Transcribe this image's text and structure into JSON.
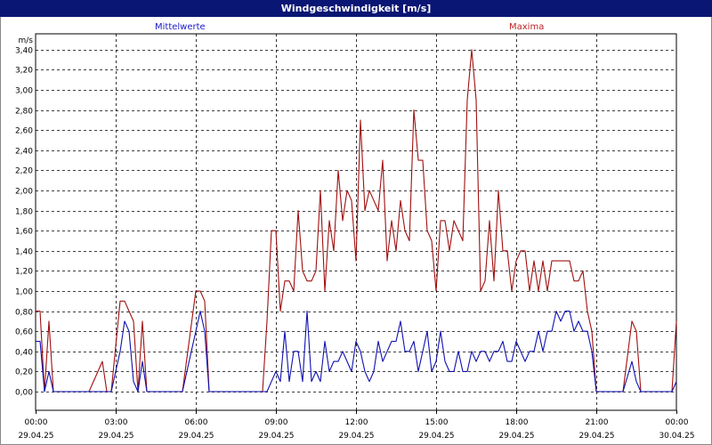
{
  "window": {
    "title": "Windgeschwindigkeit [m/s]"
  },
  "colors": {
    "mean": "#1010b0",
    "max": "#a01010",
    "grid": "#000000",
    "titlebar": "#0a1673"
  },
  "chart_data": {
    "type": "line",
    "title": "Windgeschwindigkeit [m/s]",
    "ylabel": "m/s",
    "xlabel": "",
    "ylim": [
      -0.1,
      3.55
    ],
    "y_ticks": [
      "0,00",
      "0,20",
      "0,40",
      "0,60",
      "0,80",
      "1,00",
      "1,20",
      "1,40",
      "1,60",
      "1,80",
      "2,00",
      "2,20",
      "2,40",
      "2,60",
      "2,80",
      "3,00",
      "3,20",
      "3,40"
    ],
    "x_ticks": [
      {
        "time": "00:00",
        "date": "29.04.25"
      },
      {
        "time": "03:00",
        "date": "29.04.25"
      },
      {
        "time": "06:00",
        "date": "29.04.25"
      },
      {
        "time": "09:00",
        "date": "29.04.25"
      },
      {
        "time": "12:00",
        "date": "29.04.25"
      },
      {
        "time": "15:00",
        "date": "29.04.25"
      },
      {
        "time": "18:00",
        "date": "29.04.25"
      },
      {
        "time": "21:00",
        "date": "29.04.25"
      },
      {
        "time": "00:00",
        "date": "30.04.25"
      }
    ],
    "grid": true,
    "series": [
      {
        "name": "Mittelwerte",
        "color": "#1010b0",
        "legend_position": "top-left",
        "points": [
          [
            "00:00",
            0.5
          ],
          [
            "00:10",
            0.5
          ],
          [
            "00:20",
            0.0
          ],
          [
            "00:30",
            0.2
          ],
          [
            "00:40",
            0.0
          ],
          [
            "00:50",
            0.0
          ],
          [
            "01:00",
            0.0
          ],
          [
            "01:30",
            0.0
          ],
          [
            "02:00",
            0.0
          ],
          [
            "02:30",
            0.0
          ],
          [
            "02:50",
            0.0
          ],
          [
            "03:10",
            0.4
          ],
          [
            "03:20",
            0.7
          ],
          [
            "03:30",
            0.6
          ],
          [
            "03:40",
            0.1
          ],
          [
            "03:50",
            0.0
          ],
          [
            "04:00",
            0.3
          ],
          [
            "04:10",
            0.0
          ],
          [
            "04:30",
            0.0
          ],
          [
            "05:00",
            0.0
          ],
          [
            "05:30",
            0.0
          ],
          [
            "06:00",
            0.6
          ],
          [
            "06:10",
            0.8
          ],
          [
            "06:20",
            0.6
          ],
          [
            "06:30",
            0.0
          ],
          [
            "07:00",
            0.0
          ],
          [
            "07:30",
            0.0
          ],
          [
            "08:00",
            0.0
          ],
          [
            "08:30",
            0.0
          ],
          [
            "08:40",
            0.0
          ],
          [
            "08:50",
            0.1
          ],
          [
            "09:00",
            0.2
          ],
          [
            "09:10",
            0.1
          ],
          [
            "09:20",
            0.6
          ],
          [
            "09:30",
            0.1
          ],
          [
            "09:40",
            0.4
          ],
          [
            "09:50",
            0.4
          ],
          [
            "10:00",
            0.1
          ],
          [
            "10:10",
            0.8
          ],
          [
            "10:20",
            0.1
          ],
          [
            "10:30",
            0.2
          ],
          [
            "10:40",
            0.1
          ],
          [
            "10:50",
            0.5
          ],
          [
            "11:00",
            0.2
          ],
          [
            "11:10",
            0.3
          ],
          [
            "11:20",
            0.3
          ],
          [
            "11:30",
            0.4
          ],
          [
            "11:40",
            0.3
          ],
          [
            "11:50",
            0.2
          ],
          [
            "12:00",
            0.5
          ],
          [
            "12:10",
            0.4
          ],
          [
            "12:20",
            0.2
          ],
          [
            "12:30",
            0.1
          ],
          [
            "12:40",
            0.2
          ],
          [
            "12:50",
            0.5
          ],
          [
            "13:00",
            0.3
          ],
          [
            "13:10",
            0.4
          ],
          [
            "13:20",
            0.5
          ],
          [
            "13:30",
            0.5
          ],
          [
            "13:40",
            0.7
          ],
          [
            "13:50",
            0.4
          ],
          [
            "14:00",
            0.4
          ],
          [
            "14:10",
            0.5
          ],
          [
            "14:20",
            0.2
          ],
          [
            "14:30",
            0.4
          ],
          [
            "14:40",
            0.6
          ],
          [
            "14:50",
            0.2
          ],
          [
            "15:00",
            0.3
          ],
          [
            "15:10",
            0.6
          ],
          [
            "15:20",
            0.3
          ],
          [
            "15:30",
            0.2
          ],
          [
            "15:40",
            0.2
          ],
          [
            "15:50",
            0.4
          ],
          [
            "16:00",
            0.2
          ],
          [
            "16:10",
            0.2
          ],
          [
            "16:20",
            0.4
          ],
          [
            "16:30",
            0.3
          ],
          [
            "16:40",
            0.4
          ],
          [
            "16:50",
            0.4
          ],
          [
            "17:00",
            0.3
          ],
          [
            "17:10",
            0.4
          ],
          [
            "17:20",
            0.4
          ],
          [
            "17:30",
            0.5
          ],
          [
            "17:40",
            0.3
          ],
          [
            "17:50",
            0.3
          ],
          [
            "18:00",
            0.5
          ],
          [
            "18:10",
            0.4
          ],
          [
            "18:20",
            0.3
          ],
          [
            "18:30",
            0.4
          ],
          [
            "18:40",
            0.4
          ],
          [
            "18:50",
            0.6
          ],
          [
            "19:00",
            0.4
          ],
          [
            "19:10",
            0.6
          ],
          [
            "19:20",
            0.6
          ],
          [
            "19:30",
            0.8
          ],
          [
            "19:40",
            0.7
          ],
          [
            "19:50",
            0.8
          ],
          [
            "20:00",
            0.8
          ],
          [
            "20:10",
            0.6
          ],
          [
            "20:20",
            0.7
          ],
          [
            "20:30",
            0.6
          ],
          [
            "20:40",
            0.6
          ],
          [
            "20:50",
            0.4
          ],
          [
            "21:00",
            0.0
          ],
          [
            "21:10",
            0.0
          ],
          [
            "21:30",
            0.0
          ],
          [
            "22:00",
            0.0
          ],
          [
            "22:20",
            0.3
          ],
          [
            "22:30",
            0.1
          ],
          [
            "22:40",
            0.0
          ],
          [
            "23:00",
            0.0
          ],
          [
            "23:30",
            0.0
          ],
          [
            "23:50",
            0.0
          ],
          [
            "24:00",
            0.1
          ]
        ]
      },
      {
        "name": "Maxima",
        "color": "#a01010",
        "legend_position": "top-right",
        "points": [
          [
            "00:00",
            0.8
          ],
          [
            "00:10",
            0.8
          ],
          [
            "00:20",
            0.0
          ],
          [
            "00:30",
            0.7
          ],
          [
            "00:40",
            0.0
          ],
          [
            "00:50",
            0.0
          ],
          [
            "01:00",
            0.0
          ],
          [
            "01:30",
            0.0
          ],
          [
            "02:00",
            0.0
          ],
          [
            "02:30",
            0.3
          ],
          [
            "02:40",
            0.0
          ],
          [
            "02:50",
            0.0
          ],
          [
            "03:10",
            0.9
          ],
          [
            "03:20",
            0.9
          ],
          [
            "03:30",
            0.8
          ],
          [
            "03:40",
            0.7
          ],
          [
            "03:50",
            0.0
          ],
          [
            "04:00",
            0.7
          ],
          [
            "04:10",
            0.0
          ],
          [
            "04:30",
            0.0
          ],
          [
            "05:00",
            0.0
          ],
          [
            "05:30",
            0.0
          ],
          [
            "06:00",
            1.0
          ],
          [
            "06:10",
            1.0
          ],
          [
            "06:20",
            0.9
          ],
          [
            "06:30",
            0.0
          ],
          [
            "07:00",
            0.0
          ],
          [
            "07:30",
            0.0
          ],
          [
            "08:00",
            0.0
          ],
          [
            "08:30",
            0.0
          ],
          [
            "08:40",
            0.7
          ],
          [
            "08:50",
            1.6
          ],
          [
            "09:00",
            1.6
          ],
          [
            "09:10",
            0.8
          ],
          [
            "09:20",
            1.1
          ],
          [
            "09:30",
            1.1
          ],
          [
            "09:40",
            1.0
          ],
          [
            "09:50",
            1.8
          ],
          [
            "10:00",
            1.2
          ],
          [
            "10:10",
            1.1
          ],
          [
            "10:20",
            1.1
          ],
          [
            "10:30",
            1.2
          ],
          [
            "10:40",
            2.0
          ],
          [
            "10:50",
            1.0
          ],
          [
            "11:00",
            1.7
          ],
          [
            "11:10",
            1.4
          ],
          [
            "11:20",
            2.2
          ],
          [
            "11:30",
            1.7
          ],
          [
            "11:40",
            2.0
          ],
          [
            "11:50",
            1.9
          ],
          [
            "12:00",
            1.3
          ],
          [
            "12:10",
            2.7
          ],
          [
            "12:20",
            1.8
          ],
          [
            "12:30",
            2.0
          ],
          [
            "12:40",
            1.9
          ],
          [
            "12:50",
            1.8
          ],
          [
            "13:00",
            2.3
          ],
          [
            "13:10",
            1.3
          ],
          [
            "13:20",
            1.7
          ],
          [
            "13:30",
            1.4
          ],
          [
            "13:40",
            1.9
          ],
          [
            "13:50",
            1.6
          ],
          [
            "14:00",
            1.5
          ],
          [
            "14:10",
            2.8
          ],
          [
            "14:20",
            2.3
          ],
          [
            "14:30",
            2.3
          ],
          [
            "14:40",
            1.6
          ],
          [
            "14:50",
            1.5
          ],
          [
            "15:00",
            1.0
          ],
          [
            "15:10",
            1.7
          ],
          [
            "15:20",
            1.7
          ],
          [
            "15:30",
            1.4
          ],
          [
            "15:40",
            1.7
          ],
          [
            "15:50",
            1.6
          ],
          [
            "16:00",
            1.5
          ],
          [
            "16:10",
            2.9
          ],
          [
            "16:20",
            3.4
          ],
          [
            "16:30",
            2.9
          ],
          [
            "16:40",
            1.0
          ],
          [
            "16:50",
            1.1
          ],
          [
            "17:00",
            1.7
          ],
          [
            "17:10",
            1.1
          ],
          [
            "17:20",
            2.0
          ],
          [
            "17:30",
            1.4
          ],
          [
            "17:40",
            1.4
          ],
          [
            "17:50",
            1.0
          ],
          [
            "18:00",
            1.3
          ],
          [
            "18:10",
            1.4
          ],
          [
            "18:20",
            1.4
          ],
          [
            "18:30",
            1.0
          ],
          [
            "18:40",
            1.3
          ],
          [
            "18:50",
            1.0
          ],
          [
            "19:00",
            1.3
          ],
          [
            "19:10",
            1.0
          ],
          [
            "19:20",
            1.3
          ],
          [
            "19:30",
            1.3
          ],
          [
            "19:40",
            1.3
          ],
          [
            "19:50",
            1.3
          ],
          [
            "20:00",
            1.3
          ],
          [
            "20:10",
            1.1
          ],
          [
            "20:20",
            1.1
          ],
          [
            "20:30",
            1.2
          ],
          [
            "20:40",
            0.8
          ],
          [
            "20:50",
            0.6
          ],
          [
            "21:00",
            0.0
          ],
          [
            "21:10",
            0.0
          ],
          [
            "21:30",
            0.0
          ],
          [
            "22:00",
            0.0
          ],
          [
            "22:20",
            0.7
          ],
          [
            "22:30",
            0.6
          ],
          [
            "22:40",
            0.0
          ],
          [
            "23:00",
            0.0
          ],
          [
            "23:30",
            0.0
          ],
          [
            "23:50",
            0.0
          ],
          [
            "24:00",
            0.7
          ]
        ]
      }
    ]
  }
}
